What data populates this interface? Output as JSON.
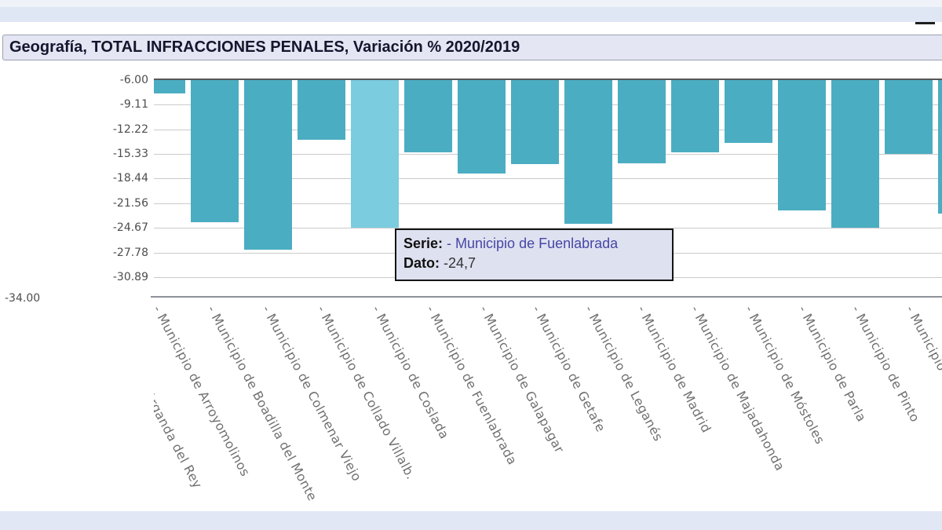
{
  "title_bar": {
    "text": "Geografía, TOTAL INFRACCIONES PENALES, Variación % 2020/2019"
  },
  "tooltip": {
    "serie_label": "Serie:",
    "serie_value": " - Municipio de Fuenlabrada",
    "dato_label": "Dato:",
    "dato_value": " -24,7"
  },
  "chart_data": {
    "type": "bar",
    "title": "Geografía, TOTAL INFRACCIONES PENALES, Variación % 2020/2019",
    "orientation": "vertical",
    "grid": true,
    "y_axis": {
      "max": -6.0,
      "min": -34.0,
      "tick_labels": [
        "-6.00",
        "-9.11",
        "-12.22",
        "-15.33",
        "-18.44",
        "-21.56",
        "-24.67",
        "-27.78",
        "-30.89"
      ],
      "bottom_label": "-34.00"
    },
    "x_axis_labels": [
      "- Municipio de Arganda del Rey",
      "- Municipio de Arroyomolinos",
      "- Municipio de Boadilla del Monte",
      "- Municipio de Colmenar Viejo",
      "- Municipio de Collado Villalb.",
      "- Municipio de Coslada",
      "- Municipio de Fuenlabrada",
      "- Municipio de Galapagar",
      "- Municipio de Getafe",
      "- Municipio de Leganés",
      "- Municipio de Madrid",
      "- Municipio de Majadahonda",
      "- Municipio de Móstoles",
      "- Municipio de Parla",
      "- Municipio de Pinto",
      "- Municipio de"
    ],
    "bars": [
      {
        "name": "Municipio de Boadilla del Monte",
        "value": -7.7,
        "highlighted": false
      },
      {
        "name": "Municipio de Colmenar Viejo",
        "value": -24.0,
        "highlighted": false
      },
      {
        "name": "Municipio de Collado Villalba",
        "value": -27.4,
        "highlighted": false
      },
      {
        "name": "Municipio de Coslada",
        "value": -13.5,
        "highlighted": false
      },
      {
        "name": "Municipio de Fuenlabrada",
        "value": -24.7,
        "highlighted": true
      },
      {
        "name": "Municipio de Galapagar",
        "value": -15.1,
        "highlighted": false
      },
      {
        "name": "Municipio de Getafe",
        "value": -17.8,
        "highlighted": false
      },
      {
        "name": "Municipio de Leganés",
        "value": -16.6,
        "highlighted": false
      },
      {
        "name": "Municipio de Madrid",
        "value": -24.2,
        "highlighted": false
      },
      {
        "name": "Municipio de Majadahonda",
        "value": -16.5,
        "highlighted": false
      },
      {
        "name": "Municipio de Móstoles",
        "value": -15.1,
        "highlighted": false
      },
      {
        "name": "Municipio de Parla",
        "value": -13.9,
        "highlighted": false
      },
      {
        "name": "Municipio de Pinto",
        "value": -22.5,
        "highlighted": false
      },
      {
        "name": "",
        "value": -24.7,
        "highlighted": false
      },
      {
        "name": "",
        "value": -15.3,
        "highlighted": false
      },
      {
        "name": "",
        "value": -22.9,
        "highlighted": false
      }
    ],
    "colors": {
      "bar": "#4badc2",
      "bar_highlight": "#7bccdf"
    }
  },
  "colors": {
    "header_band": "#dfe6f4",
    "title_bar_bg": "#e4e6f3",
    "tooltip_bg": "#dee1f0",
    "tooltip_border": "#141414",
    "serie_name_text": "#4747a5",
    "gridline": "#cbcbcb",
    "footer_band": "#e2e7f5"
  }
}
